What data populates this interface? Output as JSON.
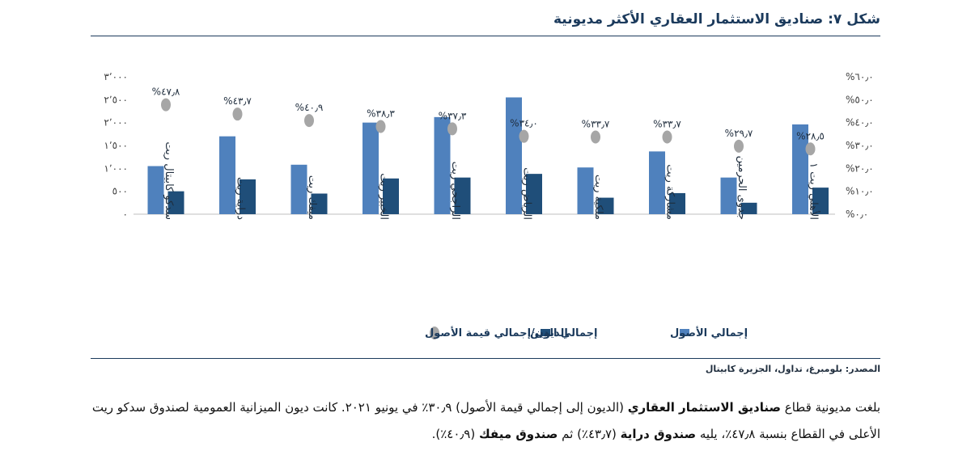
{
  "figure": {
    "title": "شكل ٧: صناديق الاستثمار العقاري الأكثر مديونية"
  },
  "chart_data": {
    "type": "bar",
    "categories": [
      "سدكو كابيتال ريت",
      "دراية ريت",
      "ميفك ريت",
      "الخبير ريت",
      "الراجحي ريت",
      "الرياض ريت",
      "ملكية ريت",
      "مشاركة ريت",
      "جدوى الحرمين",
      "الأهلي ريت ١"
    ],
    "series": [
      {
        "name": "إجمالي الأصول",
        "axis": "left",
        "values": [
          1050,
          1700,
          1080,
          2000,
          2120,
          2550,
          1020,
          1370,
          800,
          1960
        ]
      },
      {
        "name": "إجمالي الدين",
        "axis": "left",
        "values": [
          500,
          760,
          450,
          780,
          800,
          880,
          360,
          460,
          250,
          580
        ]
      },
      {
        "name": "الديون/إجمالي قيمة الأصول",
        "axis": "right",
        "type": "scatter",
        "values": [
          47.8,
          43.7,
          40.9,
          38.3,
          37.3,
          34.0,
          33.7,
          33.7,
          29.7,
          28.5
        ]
      }
    ],
    "point_labels": [
      "%٤٧٫٨",
      "%٤٣٫٧",
      "%٤٠٫٩",
      "%٣٨٫٣",
      "%٣٧٫٣",
      "%٣٤٫٠",
      "%٣٣٫٧",
      "%٣٣٫٧",
      "%٢٩٫٧",
      "%٢٨٫٥"
    ],
    "ylim_left": [
      0,
      3000
    ],
    "ylim_right": [
      0,
      60
    ],
    "left_ticks": [
      0,
      500,
      1000,
      1500,
      2000,
      2500,
      3000
    ],
    "left_tick_labels": [
      "٠",
      "٥٠٠",
      "١٬٠٠٠",
      "١٬٥٠٠",
      "٢٬٠٠٠",
      "٢٬٥٠٠",
      "٣٬٠٠٠"
    ],
    "right_ticks": [
      0,
      10,
      20,
      30,
      40,
      50,
      60
    ],
    "right_tick_labels": [
      "%٠٫٠",
      "%١٠٫٠",
      "%٢٠٫٠",
      "%٣٠٫٠",
      "%٤٠٫٠",
      "%٥٠٫٠",
      "%٦٠٫٠"
    ],
    "grid": false,
    "legend_position": "bottom",
    "colors": {
      "assets": "#4f81bd",
      "debt": "#1f4e79",
      "ratio": "#a6a6a6"
    }
  },
  "source": "المصدر: بلومبرغ، تداول، الجزيرة كابيتال",
  "paragraph": {
    "p1": "بلغت مديونية قطاع ",
    "b1": "صناديق الاستثمار العقاري",
    "p2": " (الديون إلى إجمالي قيمة الأصول) ٣٠٫٩٪ في يونيو ٢٠٢١. كانت ديون الميزانية العمومية لصندوق سدكو ريت الأعلى في القطاع بنسبة ٤٧٫٨٪، يليه ",
    "b2": "صندوق دراية",
    "p3": " (٤٣٫٧٪) ثم ",
    "b3": "صندوق ميفك",
    "p4": " (٤٠٫٩٪)."
  }
}
